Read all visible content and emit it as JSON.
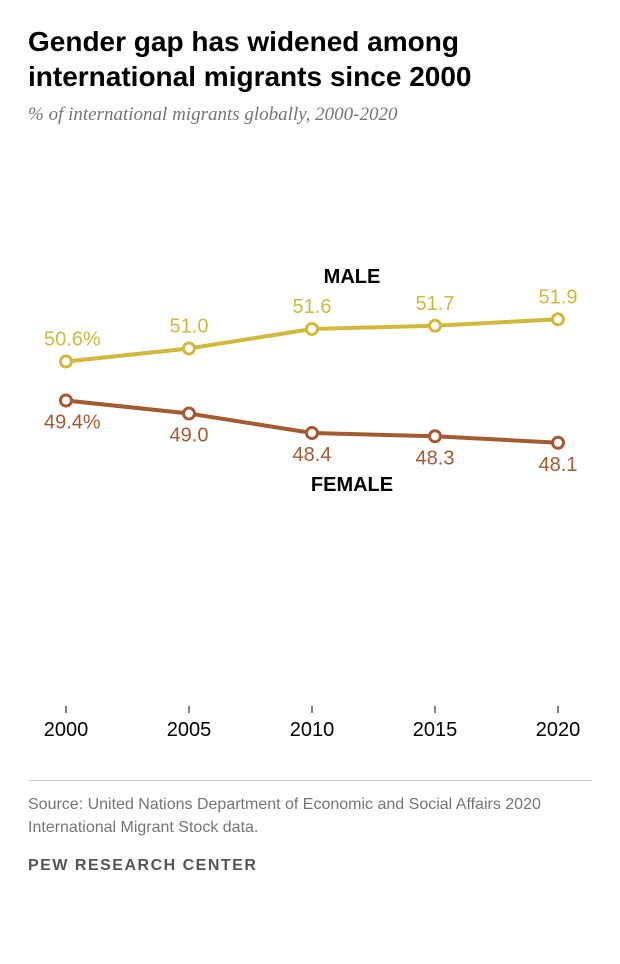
{
  "title": "Gender gap has widened among international migrants since 2000",
  "subtitle": "% of international migrants globally, 2000-2020",
  "source": "Source: United Nations Department of Economic and Social Affairs 2020 International Migrant Stock data.",
  "attribution": "PEW RESEARCH CENTER",
  "chart": {
    "type": "line",
    "x_values": [
      2000,
      2005,
      2010,
      2015,
      2020
    ],
    "x_labels": [
      "2000",
      "2005",
      "2010",
      "2015",
      "2020"
    ],
    "ylim": [
      40,
      56
    ],
    "series": [
      {
        "name": "MALE",
        "label": "MALE",
        "color": "#d1b93c",
        "values": [
          50.6,
          51.0,
          51.6,
          51.7,
          51.9
        ],
        "value_labels": [
          "50.6%",
          "51.0",
          "51.6",
          "51.7",
          "51.9"
        ],
        "label_position": "above"
      },
      {
        "name": "FEMALE",
        "label": "FEMALE",
        "color": "#a65a2f",
        "values": [
          49.4,
          49.0,
          48.4,
          48.3,
          48.1
        ],
        "value_labels": [
          "49.4%",
          "49.0",
          "48.4",
          "48.3",
          "48.1"
        ],
        "label_position": "below"
      }
    ],
    "line_width": 4,
    "marker_radius": 5.5,
    "marker_fill": "#ffffff",
    "marker_stroke_width": 3,
    "background_color": "#ffffff",
    "axis_color": "#000000",
    "axis_font_size": 20,
    "data_label_font_size": 20,
    "series_label_font_size": 20,
    "font_family_sans": "Arial, sans-serif"
  }
}
